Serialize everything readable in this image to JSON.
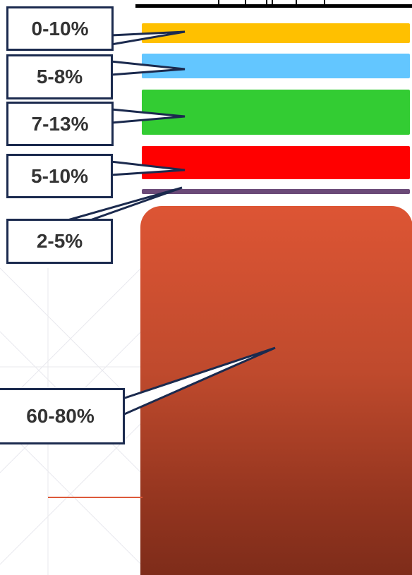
{
  "labels": [
    "0-10%",
    "5-8%",
    "7-13%",
    "5-10%",
    "2-5%",
    "60-80%"
  ],
  "colors": {
    "band_1": "#ffc000",
    "band_2": "#63c6ff",
    "band_3": "#33cc33",
    "band_4": "#ff0000",
    "band_5": "#6b4a78",
    "band_6": "#c0452a",
    "label_border": "#1b2a4e",
    "label_text": "#333333"
  }
}
